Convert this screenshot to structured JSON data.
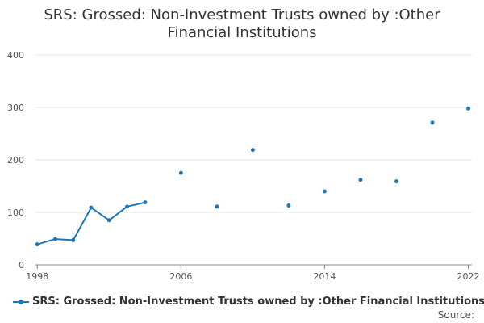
{
  "title_line1": "SRS: Grossed: Non-Investment Trusts owned by :Other",
  "title_line2": "Financial Institutions",
  "source_label": "Source:",
  "colors": {
    "series": "#1f77b4",
    "grid": "#e6e6e6",
    "axis": "#888888"
  },
  "chart_data": {
    "type": "line",
    "title": "SRS: Grossed: Non-Investment Trusts owned by :Other Financial Institutions",
    "xlabel": "",
    "ylabel": "",
    "xlim": [
      1997.9,
      2022.2
    ],
    "ylim": [
      0,
      400
    ],
    "x_ticks": [
      1998,
      2006,
      2014,
      2022
    ],
    "y_ticks": [
      0,
      100,
      200,
      300,
      400
    ],
    "grid": true,
    "legend": "bottom-left",
    "series": [
      {
        "name": "SRS: Grossed: Non-Investment Trusts owned by :Other Financial Institutions",
        "points": [
          {
            "x": 1998,
            "y": 39
          },
          {
            "x": 1999,
            "y": 49
          },
          {
            "x": 2000,
            "y": 47
          },
          {
            "x": 2001,
            "y": 109
          },
          {
            "x": 2002,
            "y": 85
          },
          {
            "x": 2003,
            "y": 111
          },
          {
            "x": 2004,
            "y": 119
          },
          {
            "x": 2006,
            "y": 175
          },
          {
            "x": 2008,
            "y": 111
          },
          {
            "x": 2010,
            "y": 219
          },
          {
            "x": 2012,
            "y": 113
          },
          {
            "x": 2014,
            "y": 140
          },
          {
            "x": 2016,
            "y": 162
          },
          {
            "x": 2018,
            "y": 159
          },
          {
            "x": 2020,
            "y": 271
          },
          {
            "x": 2022,
            "y": 298
          }
        ]
      }
    ]
  }
}
